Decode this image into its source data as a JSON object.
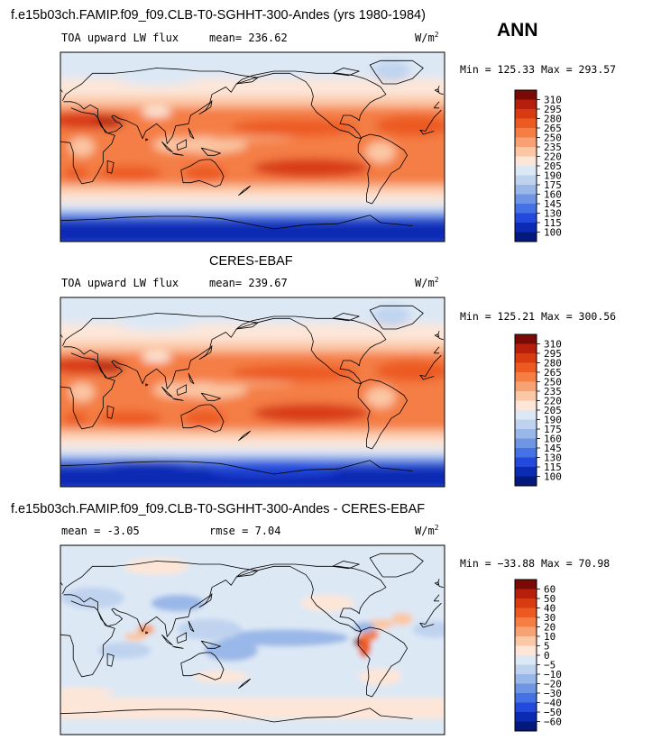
{
  "chart_data": [
    {
      "type": "heatmap",
      "title": "f.e15b03ch.FAMIP.f09_f09.CLB-T0-SGHHT-300-Andes (yrs 1980-1984)",
      "season": "ANN",
      "left_label": "TOA upward LW flux",
      "mean_text": "mean= 236.62",
      "units_base": "W/m",
      "units_exp": "2",
      "minmax_text": "Min = 125.33 Max = 293.57",
      "min": 125.33,
      "max": 293.57,
      "mean": 236.62,
      "colorbar_levels": [
        "310",
        "295",
        "280",
        "265",
        "250",
        "235",
        "220",
        "205",
        "190",
        "175",
        "160",
        "145",
        "130",
        "115",
        "100"
      ],
      "colorbar_colors": [
        "#7a0a06",
        "#b51f0c",
        "#d83a12",
        "#ec5a22",
        "#f47e44",
        "#f8a274",
        "#fbc7a5",
        "#fde6d8",
        "#dde8f5",
        "#bfd3ef",
        "#99b7e8",
        "#6f95e3",
        "#4571e4",
        "#2248dc",
        "#0c2bb5",
        "#05187c"
      ],
      "field": "tropics_warm",
      "show_equator_band": true
    },
    {
      "type": "heatmap",
      "title": "CERES-EBAF",
      "left_label": "TOA upward LW flux",
      "mean_text": "mean= 239.67",
      "units_base": "W/m",
      "units_exp": "2",
      "minmax_text": "Min = 125.21 Max = 300.56",
      "min": 125.21,
      "max": 300.56,
      "mean": 239.67,
      "colorbar_levels": [
        "310",
        "295",
        "280",
        "265",
        "250",
        "235",
        "220",
        "205",
        "190",
        "175",
        "160",
        "145",
        "130",
        "115",
        "100"
      ],
      "colorbar_colors": [
        "#7a0a06",
        "#b51f0c",
        "#d83a12",
        "#ec5a22",
        "#f47e44",
        "#f8a274",
        "#fbc7a5",
        "#fde6d8",
        "#dde8f5",
        "#bfd3ef",
        "#99b7e8",
        "#6f95e3",
        "#4571e4",
        "#2248dc",
        "#0c2bb5",
        "#05187c"
      ],
      "field": "tropics_warm",
      "show_equator_band": true
    },
    {
      "type": "heatmap",
      "title": "f.e15b03ch.FAMIP.f09_f09.CLB-T0-SGHHT-300-Andes - CERES-EBAF",
      "left_label": "mean =  -3.05",
      "mean_text": "rmse =   7.04",
      "units_base": "W/m",
      "units_exp": "2",
      "minmax_text": "Min = −33.88 Max =  70.98",
      "min": -33.88,
      "max": 70.98,
      "mean": -3.05,
      "rmse": 7.04,
      "colorbar_levels": [
        "60",
        "50",
        "40",
        "30",
        "20",
        "10",
        "5",
        "0",
        "−5",
        "−10",
        "−20",
        "−30",
        "−40",
        "−50",
        "−60"
      ],
      "colorbar_colors": [
        "#7a0a06",
        "#b51f0c",
        "#d83a12",
        "#ec5a22",
        "#f47e44",
        "#f8a274",
        "#fbc7a5",
        "#fde6d8",
        "#dde8f5",
        "#bfd3ef",
        "#99b7e8",
        "#6f95e3",
        "#4571e4",
        "#2248dc",
        "#0c2bb5",
        "#05187c"
      ],
      "field": "difference",
      "show_equator_band": false
    }
  ]
}
